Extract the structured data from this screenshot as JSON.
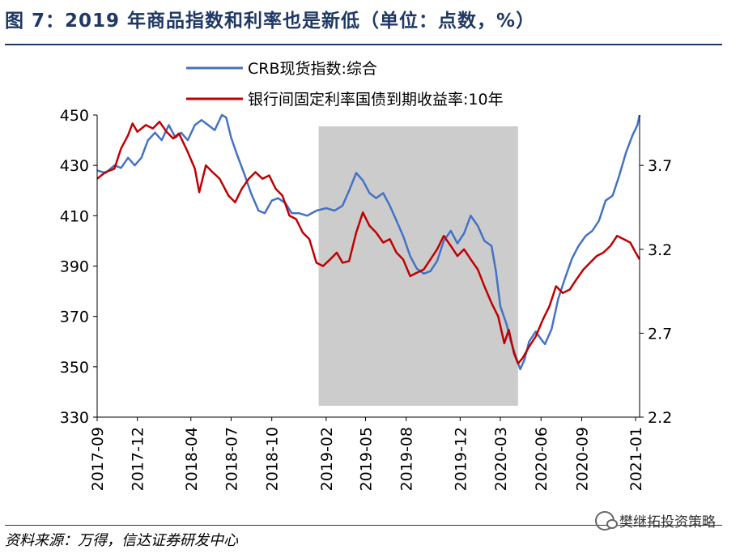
{
  "title": "图 7：2019 年商品指数和利率也是新低（单位：点数，%）",
  "source": "资料来源：万得，信达证券研发中心",
  "watermark": "樊继拓投资策略",
  "chart_data": {
    "type": "line",
    "left_axis": {
      "ylim": [
        330,
        450
      ],
      "ticks": [
        "330",
        "350",
        "370",
        "390",
        "410",
        "430",
        "450"
      ]
    },
    "right_axis": {
      "ylim": [
        2.2,
        4.0
      ],
      "ticks": [
        "2.2",
        "2.7",
        "3.2",
        "3.7"
      ]
    },
    "x_ticks": [
      "2017-09",
      "2017-12",
      "2018-04",
      "2018-07",
      "2018-10",
      "2019-02",
      "2019-05",
      "2019-08",
      "2019-12",
      "2020-03",
      "2020-06",
      "2020-09",
      "2021-01"
    ],
    "shaded_region": {
      "start": "2019-01-15",
      "end": "2020-04-10",
      "color": "#cccccc"
    },
    "series": [
      {
        "name": "CRB现货指数:综合",
        "axis": "left",
        "color": "#4472c4",
        "points": [
          [
            "2017-09-01",
            428
          ],
          [
            "2017-09-20",
            427
          ],
          [
            "2017-10-10",
            430
          ],
          [
            "2017-10-25",
            429
          ],
          [
            "2017-11-10",
            433
          ],
          [
            "2017-11-25",
            430
          ],
          [
            "2017-12-10",
            433
          ],
          [
            "2017-12-25",
            440
          ],
          [
            "2018-01-10",
            443
          ],
          [
            "2018-01-25",
            440
          ],
          [
            "2018-02-10",
            446
          ],
          [
            "2018-02-25",
            441
          ],
          [
            "2018-03-10",
            443
          ],
          [
            "2018-03-25",
            440
          ],
          [
            "2018-04-10",
            446
          ],
          [
            "2018-04-25",
            448
          ],
          [
            "2018-05-10",
            446
          ],
          [
            "2018-05-25",
            444
          ],
          [
            "2018-06-10",
            450
          ],
          [
            "2018-06-20",
            449
          ],
          [
            "2018-07-01",
            441
          ],
          [
            "2018-07-15",
            434
          ],
          [
            "2018-08-01",
            426
          ],
          [
            "2018-08-15",
            419
          ],
          [
            "2018-09-01",
            412
          ],
          [
            "2018-09-15",
            411
          ],
          [
            "2018-10-01",
            416
          ],
          [
            "2018-10-15",
            417
          ],
          [
            "2018-11-01",
            415
          ],
          [
            "2018-11-15",
            411
          ],
          [
            "2018-12-01",
            411
          ],
          [
            "2018-12-20",
            410
          ],
          [
            "2019-01-10",
            412
          ],
          [
            "2019-02-01",
            413
          ],
          [
            "2019-02-20",
            412
          ],
          [
            "2019-03-10",
            414
          ],
          [
            "2019-03-25",
            420
          ],
          [
            "2019-04-10",
            427
          ],
          [
            "2019-04-25",
            424
          ],
          [
            "2019-05-10",
            419
          ],
          [
            "2019-05-25",
            417
          ],
          [
            "2019-06-10",
            419
          ],
          [
            "2019-06-25",
            414
          ],
          [
            "2019-07-10",
            408
          ],
          [
            "2019-07-25",
            402
          ],
          [
            "2019-08-10",
            394
          ],
          [
            "2019-08-25",
            389
          ],
          [
            "2019-09-10",
            387
          ],
          [
            "2019-09-25",
            388
          ],
          [
            "2019-10-10",
            392
          ],
          [
            "2019-10-25",
            400
          ],
          [
            "2019-11-10",
            404
          ],
          [
            "2019-11-25",
            399
          ],
          [
            "2019-12-10",
            403
          ],
          [
            "2019-12-25",
            410
          ],
          [
            "2020-01-10",
            406
          ],
          [
            "2020-01-25",
            400
          ],
          [
            "2020-02-10",
            398
          ],
          [
            "2020-02-20",
            388
          ],
          [
            "2020-03-01",
            374
          ],
          [
            "2020-03-15",
            367
          ],
          [
            "2020-03-25",
            360
          ],
          [
            "2020-04-05",
            354
          ],
          [
            "2020-04-15",
            349
          ],
          [
            "2020-04-25",
            353
          ],
          [
            "2020-05-05",
            360
          ],
          [
            "2020-05-20",
            364
          ],
          [
            "2020-06-01",
            361
          ],
          [
            "2020-06-10",
            359
          ],
          [
            "2020-06-25",
            365
          ],
          [
            "2020-07-10",
            377
          ],
          [
            "2020-07-25",
            385
          ],
          [
            "2020-08-10",
            393
          ],
          [
            "2020-08-25",
            398
          ],
          [
            "2020-09-10",
            402
          ],
          [
            "2020-09-25",
            404
          ],
          [
            "2020-10-10",
            408
          ],
          [
            "2020-10-25",
            416
          ],
          [
            "2020-11-10",
            418
          ],
          [
            "2020-11-25",
            426
          ],
          [
            "2020-12-10",
            435
          ],
          [
            "2020-12-25",
            442
          ],
          [
            "2021-01-05",
            446
          ],
          [
            "2021-01-10",
            450
          ]
        ]
      },
      {
        "name": "银行间固定利率国债到期收益率:10年",
        "axis": "right",
        "color": "#c00000",
        "points": [
          [
            "2017-09-01",
            3.62
          ],
          [
            "2017-09-20",
            3.66
          ],
          [
            "2017-10-10",
            3.68
          ],
          [
            "2017-10-25",
            3.8
          ],
          [
            "2017-11-10",
            3.88
          ],
          [
            "2017-11-20",
            3.95
          ],
          [
            "2017-12-01",
            3.9
          ],
          [
            "2017-12-20",
            3.94
          ],
          [
            "2018-01-05",
            3.92
          ],
          [
            "2018-01-20",
            3.96
          ],
          [
            "2018-02-05",
            3.9
          ],
          [
            "2018-02-20",
            3.86
          ],
          [
            "2018-03-05",
            3.89
          ],
          [
            "2018-03-25",
            3.78
          ],
          [
            "2018-04-10",
            3.68
          ],
          [
            "2018-04-20",
            3.54
          ],
          [
            "2018-05-05",
            3.7
          ],
          [
            "2018-05-20",
            3.66
          ],
          [
            "2018-06-05",
            3.62
          ],
          [
            "2018-06-25",
            3.52
          ],
          [
            "2018-07-10",
            3.48
          ],
          [
            "2018-07-25",
            3.56
          ],
          [
            "2018-08-10",
            3.62
          ],
          [
            "2018-08-25",
            3.66
          ],
          [
            "2018-09-10",
            3.62
          ],
          [
            "2018-09-25",
            3.64
          ],
          [
            "2018-10-10",
            3.56
          ],
          [
            "2018-10-25",
            3.52
          ],
          [
            "2018-11-10",
            3.4
          ],
          [
            "2018-11-25",
            3.38
          ],
          [
            "2018-12-10",
            3.3
          ],
          [
            "2018-12-25",
            3.26
          ],
          [
            "2019-01-10",
            3.12
          ],
          [
            "2019-01-25",
            3.1
          ],
          [
            "2019-02-10",
            3.14
          ],
          [
            "2019-02-25",
            3.18
          ],
          [
            "2019-03-10",
            3.12
          ],
          [
            "2019-03-25",
            3.13
          ],
          [
            "2019-04-10",
            3.3
          ],
          [
            "2019-04-25",
            3.42
          ],
          [
            "2019-05-10",
            3.34
          ],
          [
            "2019-05-25",
            3.3
          ],
          [
            "2019-06-10",
            3.24
          ],
          [
            "2019-06-25",
            3.26
          ],
          [
            "2019-07-10",
            3.18
          ],
          [
            "2019-07-25",
            3.14
          ],
          [
            "2019-08-10",
            3.04
          ],
          [
            "2019-08-25",
            3.06
          ],
          [
            "2019-09-10",
            3.08
          ],
          [
            "2019-09-25",
            3.14
          ],
          [
            "2019-10-10",
            3.2
          ],
          [
            "2019-10-25",
            3.28
          ],
          [
            "2019-11-10",
            3.22
          ],
          [
            "2019-11-25",
            3.16
          ],
          [
            "2019-12-10",
            3.2
          ],
          [
            "2019-12-25",
            3.14
          ],
          [
            "2020-01-10",
            3.08
          ],
          [
            "2020-01-25",
            2.98
          ],
          [
            "2020-02-10",
            2.88
          ],
          [
            "2020-02-25",
            2.8
          ],
          [
            "2020-03-10",
            2.64
          ],
          [
            "2020-03-20",
            2.72
          ],
          [
            "2020-04-01",
            2.58
          ],
          [
            "2020-04-10",
            2.52
          ],
          [
            "2020-04-20",
            2.55
          ],
          [
            "2020-05-05",
            2.62
          ],
          [
            "2020-05-20",
            2.68
          ],
          [
            "2020-06-05",
            2.78
          ],
          [
            "2020-06-20",
            2.86
          ],
          [
            "2020-07-05",
            2.98
          ],
          [
            "2020-07-20",
            2.94
          ],
          [
            "2020-08-05",
            2.96
          ],
          [
            "2020-08-20",
            3.02
          ],
          [
            "2020-09-05",
            3.08
          ],
          [
            "2020-09-20",
            3.12
          ],
          [
            "2020-10-05",
            3.16
          ],
          [
            "2020-10-20",
            3.18
          ],
          [
            "2020-11-05",
            3.22
          ],
          [
            "2020-11-20",
            3.28
          ],
          [
            "2020-12-05",
            3.26
          ],
          [
            "2020-12-20",
            3.24
          ],
          [
            "2021-01-01",
            3.18
          ],
          [
            "2021-01-10",
            3.14
          ]
        ]
      }
    ]
  }
}
